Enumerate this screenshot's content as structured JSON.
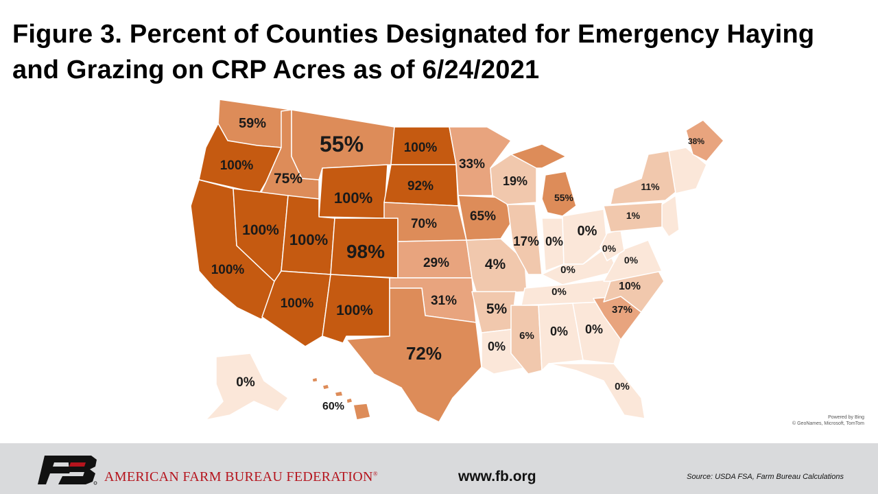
{
  "title": "Figure 3. Percent of Counties Designated for Emergency Haying and Grazing on CRP Acres as of 6/24/2021",
  "map": {
    "colors": {
      "0": "#fbe7d9",
      "1-25": "#f1c8ad",
      "26-50": "#e8a47e",
      "51-75": "#dd8c59",
      "76-100": "#c55a11"
    },
    "states": {
      "WA": "59%",
      "OR": "100%",
      "CA": "100%",
      "ID": "75%",
      "NV": "100%",
      "MT": "55%",
      "WY": "100%",
      "UT": "100%",
      "AZ": "100%",
      "CO": "98%",
      "NM": "100%",
      "ND": "100%",
      "SD": "92%",
      "NE": "70%",
      "KS": "29%",
      "OK": "31%",
      "TX": "72%",
      "MN": "33%",
      "IA": "65%",
      "MO": "4%",
      "AR": "5%",
      "LA": "0%",
      "WI": "19%",
      "IL": "17%",
      "MI": "55%",
      "IN": "0%",
      "OH": "0%",
      "KY": "0%",
      "TN": "0%",
      "MS": "6%",
      "AL": "0%",
      "GA": "0%",
      "FL": "0%",
      "SC": "37%",
      "NC": "10%",
      "VA": "0%",
      "WV": "0%",
      "PA": "1%",
      "NY": "11%",
      "ME": "38%",
      "AK": "0%",
      "HI": "60%"
    },
    "credit_line1": "Powered by Bing",
    "credit_line2": "© GeoNames, Microsoft, TomTom"
  },
  "footer": {
    "organization": "AMERICAN FARM BUREAU FEDERATION",
    "registered": "®",
    "url": "www.fb.org",
    "source": "Source: USDA FSA, Farm Bureau Calculations"
  }
}
